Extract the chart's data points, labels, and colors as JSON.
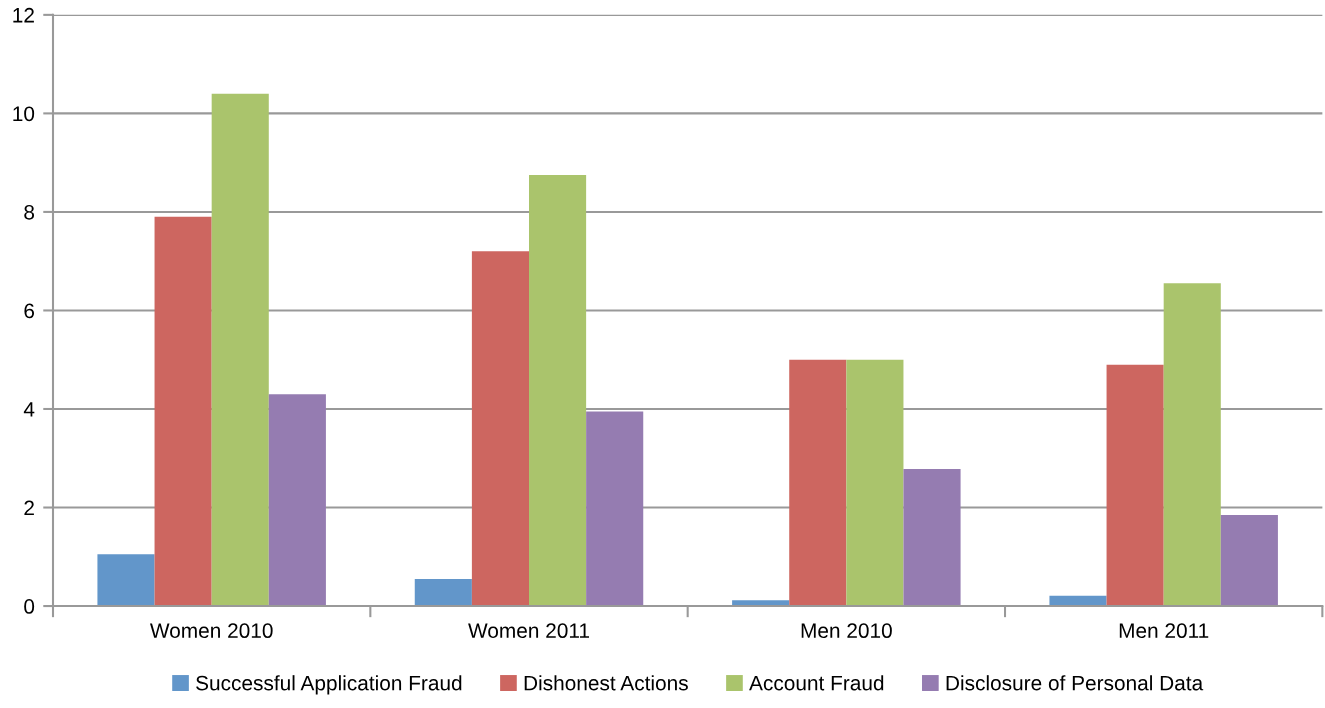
{
  "chart_data": {
    "type": "bar",
    "categories": [
      "Women 2010",
      "Women 2011",
      "Men 2010",
      "Men 2011"
    ],
    "series": [
      {
        "name": "Successful Application Fraud",
        "color": "#6296ca",
        "values": [
          1.05,
          0.55,
          0.12,
          0.21
        ]
      },
      {
        "name": "Dishonest Actions",
        "color": "#cd6660",
        "values": [
          7.9,
          7.2,
          5.0,
          4.9
        ]
      },
      {
        "name": "Account Fraud",
        "color": "#aac46c",
        "values": [
          10.4,
          8.75,
          5.0,
          6.55
        ]
      },
      {
        "name": "Disclosure of Personal Data",
        "color": "#957cb1",
        "values": [
          4.3,
          3.95,
          2.78,
          1.85
        ]
      }
    ],
    "ylim": [
      0,
      12
    ],
    "yticks": [
      0,
      2,
      4,
      6,
      8,
      10,
      12
    ],
    "grid": "y",
    "legend": "bottom"
  }
}
